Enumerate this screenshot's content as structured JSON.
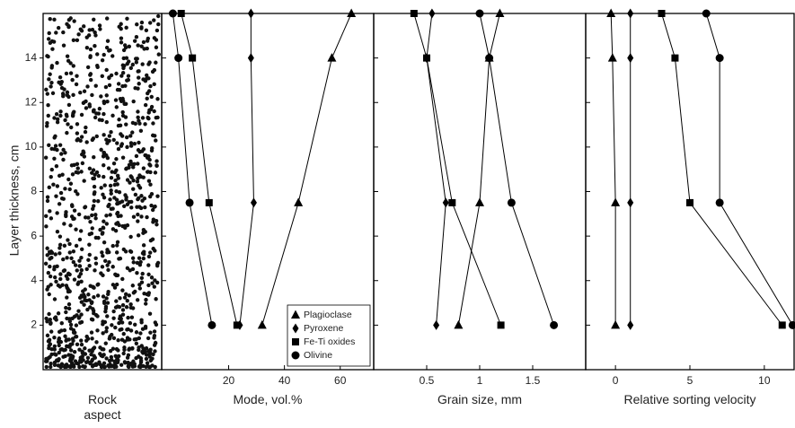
{
  "chart_data": [
    {
      "type": "texture",
      "xlabel": "Rock aspect",
      "ylabel": "Layer thickness, cm",
      "ylim": [
        0,
        16
      ],
      "yticks": [
        2,
        4,
        6,
        8,
        10,
        12,
        14
      ]
    },
    {
      "type": "line",
      "xlabel": "Mode, vol.%",
      "xlim": [
        -4,
        72
      ],
      "xticks": [
        20,
        40,
        60
      ],
      "ylim": [
        0,
        16
      ],
      "yticks": [
        2,
        4,
        6,
        8,
        10,
        12,
        14
      ],
      "y": [
        16,
        14,
        7.5,
        2
      ],
      "legend": "lower right",
      "series": [
        {
          "name": "Plagioclase",
          "marker": "triangle",
          "color": "#000000",
          "values": [
            64,
            57,
            45,
            32
          ]
        },
        {
          "name": "Pyroxene",
          "marker": "diamond",
          "color": "#000000",
          "values": [
            28,
            28,
            29,
            24
          ]
        },
        {
          "name": "Fe-Ti oxides",
          "marker": "square",
          "color": "#000000",
          "values": [
            3,
            7,
            13,
            23
          ]
        },
        {
          "name": "Olivine",
          "marker": "circle",
          "color": "#000000",
          "values": [
            0,
            2,
            6,
            14
          ]
        }
      ]
    },
    {
      "type": "line",
      "xlabel": "Grain size, mm",
      "xlim": [
        0,
        2
      ],
      "xticks": [
        0.5,
        1,
        1.5
      ],
      "ylim": [
        0,
        16
      ],
      "yticks": [
        2,
        4,
        6,
        8,
        10,
        12,
        14
      ],
      "y": [
        16,
        14,
        7.5,
        2
      ],
      "series": [
        {
          "marker": "triangle",
          "color": "#000000",
          "values": [
            1.19,
            1.09,
            1.0,
            0.8
          ]
        },
        {
          "marker": "diamond",
          "color": "#000000",
          "values": [
            0.55,
            0.5,
            0.68,
            0.59
          ]
        },
        {
          "marker": "square",
          "color": "#000000",
          "values": [
            0.38,
            0.5,
            0.74,
            1.2
          ]
        },
        {
          "marker": "circle",
          "color": "#000000",
          "values": [
            1.0,
            1.09,
            1.3,
            1.7
          ]
        }
      ]
    },
    {
      "type": "line",
      "xlabel": "Relative sorting velocity",
      "xlim": [
        -2,
        12
      ],
      "xticks": [
        0,
        5,
        10
      ],
      "ylim": [
        0,
        16
      ],
      "yticks": [
        2,
        4,
        6,
        8,
        10,
        12,
        14
      ],
      "y": [
        16,
        14,
        7.5,
        2
      ],
      "series": [
        {
          "marker": "triangle",
          "color": "#000000",
          "values": [
            -0.3,
            -0.2,
            0,
            0
          ]
        },
        {
          "marker": "diamond",
          "color": "#000000",
          "values": [
            1,
            1,
            1,
            1
          ]
        },
        {
          "marker": "square",
          "color": "#000000",
          "values": [
            3.1,
            4,
            5,
            11.2
          ]
        },
        {
          "marker": "circle",
          "color": "#000000",
          "values": [
            6.1,
            7,
            7,
            11.9
          ]
        }
      ]
    }
  ]
}
